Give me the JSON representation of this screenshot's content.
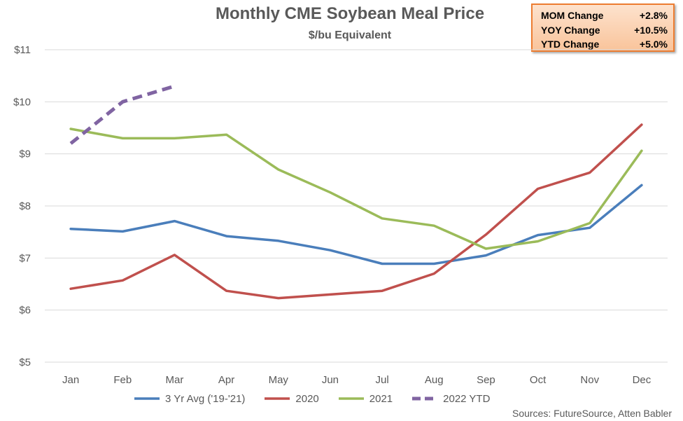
{
  "header": {
    "title": "Monthly CME Soybean Meal Price",
    "subtitle": "$/bu Equivalent"
  },
  "stats": [
    {
      "label": "MOM Change",
      "value": "+2.8%"
    },
    {
      "label": "YOY Change",
      "value": "+10.5%"
    },
    {
      "label": "YTD Change",
      "value": "+5.0%"
    }
  ],
  "source": "Sources: FutureSource, Atten Babler",
  "chart_data": {
    "type": "line",
    "title": "Monthly CME Soybean Meal Price",
    "subtitle": "$/bu Equivalent",
    "categories": [
      "Jan",
      "Feb",
      "Mar",
      "Apr",
      "May",
      "Jun",
      "Jul",
      "Aug",
      "Sep",
      "Oct",
      "Nov",
      "Dec"
    ],
    "ylim": [
      5,
      11
    ],
    "yticks": [
      5,
      6,
      7,
      8,
      9,
      10,
      11
    ],
    "ytick_labels": [
      "$5",
      "$6",
      "$7",
      "$8",
      "$9",
      "$10",
      "$11"
    ],
    "grid": true,
    "legend_position": "bottom",
    "series": [
      {
        "name": "3 Yr Avg ('19-'21)",
        "color": "#4a7ebb",
        "dashed": false,
        "values": [
          7.56,
          7.51,
          7.71,
          7.42,
          7.33,
          7.15,
          6.89,
          6.89,
          7.05,
          7.44,
          7.58,
          8.4
        ]
      },
      {
        "name": "2020",
        "color": "#c0504d",
        "dashed": false,
        "values": [
          6.41,
          6.57,
          7.06,
          6.37,
          6.23,
          6.3,
          6.37,
          6.7,
          7.45,
          8.33,
          8.64,
          9.56
        ]
      },
      {
        "name": "2021",
        "color": "#9bbb59",
        "dashed": false,
        "values": [
          9.48,
          9.3,
          9.3,
          9.37,
          8.7,
          8.26,
          7.76,
          7.62,
          7.18,
          7.32,
          7.67,
          9.06
        ]
      },
      {
        "name": "2022 YTD",
        "color": "#8064a2",
        "dashed": true,
        "values": [
          9.2,
          10.0,
          10.3,
          null,
          null,
          null,
          null,
          null,
          null,
          null,
          null,
          null
        ]
      }
    ]
  }
}
